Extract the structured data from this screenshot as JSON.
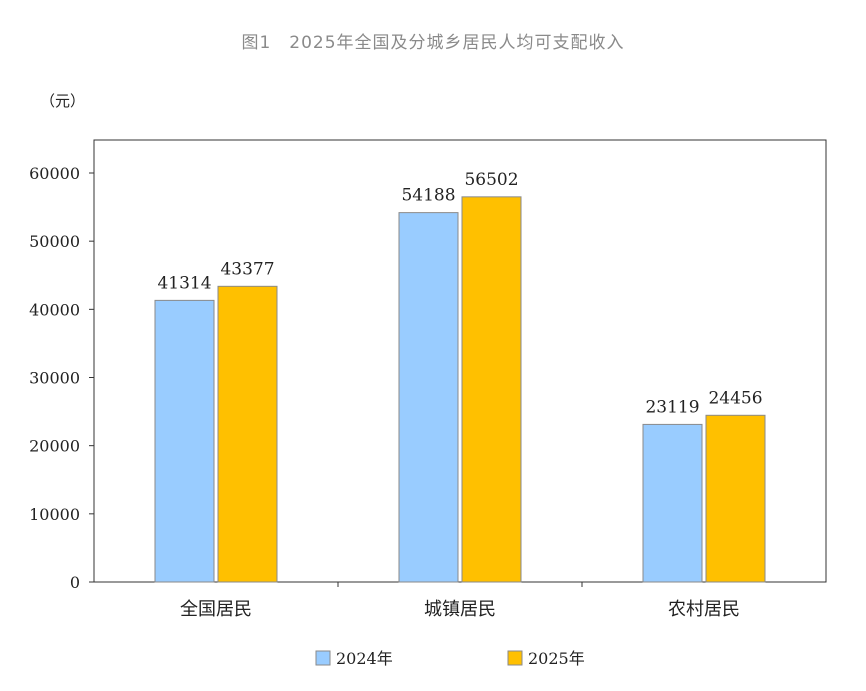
{
  "chart_data": {
    "type": "bar",
    "title": "图1　2025年全国及分城乡居民人均可支配收入",
    "ylabel": "（元）",
    "xlabel": "",
    "ylim": [
      0,
      60000
    ],
    "yticks": [
      0,
      10000,
      20000,
      30000,
      40000,
      50000,
      60000
    ],
    "grid": false,
    "legend_position": "bottom",
    "categories": [
      "全国居民",
      "城镇居民",
      "农村居民"
    ],
    "series": [
      {
        "name": "2024年",
        "color": "#99CCFF",
        "values": [
          41314,
          54188,
          23119
        ]
      },
      {
        "name": "2025年",
        "color": "#FFC000",
        "values": [
          43377,
          56502,
          24456
        ]
      }
    ]
  }
}
